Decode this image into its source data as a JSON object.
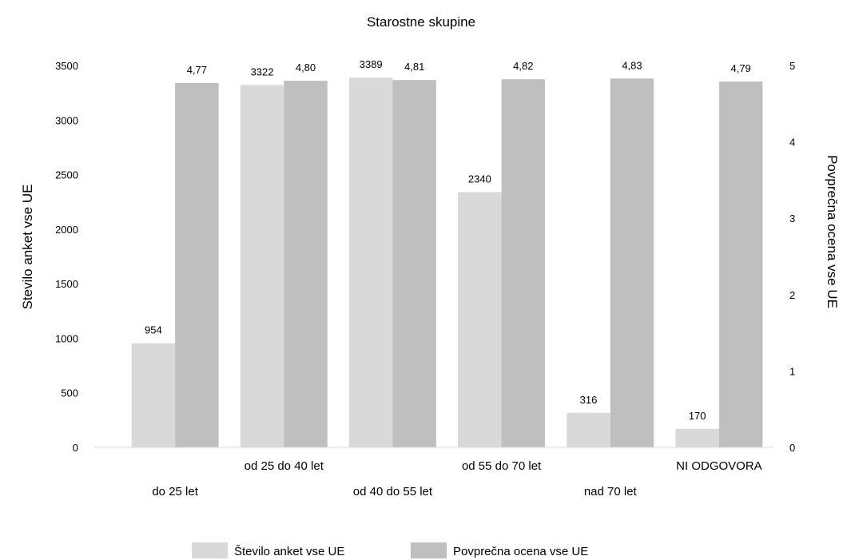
{
  "chart_data": {
    "type": "bar",
    "title": "Starostne skupine",
    "ylabel_left": "Stevilo anket vse UE",
    "ylabel_right": "Povprečna ocena vse UE",
    "categories": [
      "do 25 let",
      "od 25 do 40 let",
      "od 40 do 55 let",
      "od 55 do 70 let",
      "nad 70 let",
      "NI ODGOVORA"
    ],
    "series": [
      {
        "name": "Število anket vse UE",
        "axis": "left",
        "color": "#d9d9d9",
        "values": [
          954,
          3322,
          3389,
          2340,
          316,
          170
        ],
        "labels": [
          "954",
          "3322",
          "3389",
          "2340",
          "316",
          "170"
        ]
      },
      {
        "name": "Povprečna ocena vse UE",
        "axis": "right",
        "color": "#bfbfbf",
        "values": [
          4.77,
          4.8,
          4.81,
          4.82,
          4.83,
          4.79
        ],
        "labels": [
          "4,77",
          "4,80",
          "4,81",
          "4,82",
          "4,83",
          "4,79"
        ]
      }
    ],
    "ylim_left": [
      0,
      3500
    ],
    "yticks_left": [
      0,
      500,
      1000,
      1500,
      2000,
      2500,
      3000,
      3500
    ],
    "ylim_right": [
      0,
      5
    ],
    "yticks_right": [
      0,
      1,
      2,
      3,
      4,
      5
    ],
    "grid": false,
    "legend_position": "bottom"
  }
}
